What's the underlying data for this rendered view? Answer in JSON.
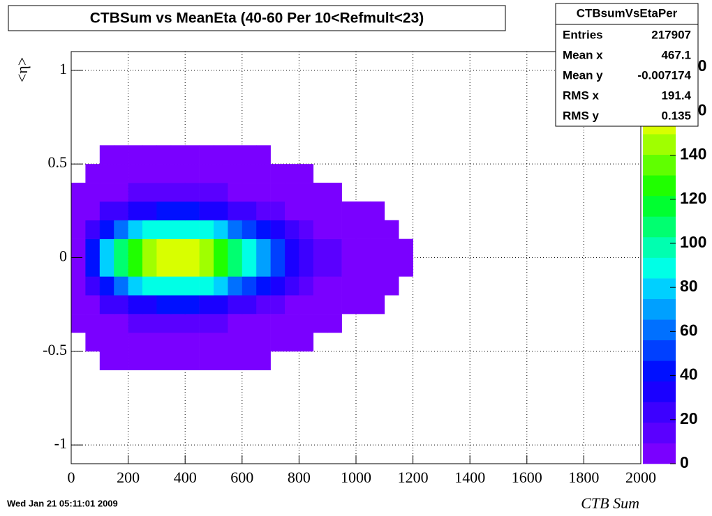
{
  "chart_data": {
    "type": "heatmap",
    "title": "CTBSum vs MeanEta (40-60 Per 10<Refmult<23)",
    "x_label": "CTB Sum",
    "y_label": "<η>",
    "timestamp": "Wed Jan 21 05:11:01 2009",
    "stats": {
      "title": "CTBsumVsEtaPer",
      "rows": [
        [
          "Entries",
          217907
        ],
        [
          "Mean x",
          467.1
        ],
        [
          "Mean y",
          -0.007174
        ],
        [
          "RMS x",
          191.4
        ],
        [
          "RMS y",
          0.135
        ]
      ]
    },
    "xlim": [
      0,
      2000
    ],
    "xticks": [
      0,
      200,
      400,
      600,
      800,
      1000,
      1200,
      1400,
      1600,
      1800,
      2000
    ],
    "ylim": [
      -1.1,
      1.1
    ],
    "yticks": [
      -1,
      -0.5,
      0,
      0.5,
      1
    ],
    "zlim": [
      0,
      187
    ],
    "zticks": [
      0,
      20,
      40,
      60,
      80,
      100,
      120,
      140,
      160,
      180
    ],
    "grid": true,
    "palette": [
      "#7a00ff",
      "#5a00ff",
      "#3c00ff",
      "#1a00ff",
      "#0010ff",
      "#0040ff",
      "#0070ff",
      "#00a0ff",
      "#00d0ff",
      "#00ffe6",
      "#00ffb0",
      "#00ff70",
      "#00ff30",
      "#20ff00",
      "#60ff00",
      "#a0ff00",
      "#d8ff00",
      "#ffe000",
      "#ffa000",
      "#ff3000"
    ],
    "x_bins": [
      0,
      50,
      100,
      150,
      200,
      250,
      300,
      350,
      400,
      450,
      500,
      550,
      600,
      650,
      700,
      750,
      800,
      850,
      900,
      950,
      1000,
      1050,
      1100,
      1150,
      1200
    ],
    "y_bins": [
      -0.6,
      -0.5,
      -0.4,
      -0.3,
      -0.2,
      -0.1,
      0,
      0.1,
      0.2,
      0.3,
      0.4,
      0.5,
      0.6
    ],
    "values": [
      [
        0,
        0,
        1,
        1,
        1,
        1,
        2,
        2,
        2,
        1,
        1,
        1,
        1,
        1,
        0,
        0,
        0,
        0,
        0,
        0,
        0,
        0,
        0,
        0
      ],
      [
        0,
        1,
        2,
        3,
        4,
        4,
        5,
        5,
        5,
        4,
        4,
        3,
        3,
        2,
        1,
        1,
        1,
        0,
        0,
        0,
        0,
        0,
        0,
        0
      ],
      [
        1,
        3,
        6,
        8,
        10,
        11,
        12,
        12,
        12,
        11,
        10,
        9,
        7,
        5,
        4,
        3,
        2,
        1,
        1,
        0,
        0,
        0,
        0,
        0
      ],
      [
        2,
        9,
        19,
        26,
        32,
        36,
        38,
        38,
        38,
        36,
        32,
        27,
        22,
        17,
        12,
        9,
        6,
        4,
        3,
        2,
        1,
        1,
        0,
        0
      ],
      [
        5,
        23,
        45,
        63,
        77,
        86,
        90,
        90,
        90,
        86,
        77,
        65,
        52,
        41,
        30,
        22,
        14,
        9,
        6,
        4,
        2,
        1,
        1,
        0
      ],
      [
        8,
        38,
        75,
        105,
        128,
        143,
        150,
        150,
        150,
        143,
        128,
        108,
        87,
        68,
        50,
        36,
        24,
        15,
        11,
        6,
        4,
        2,
        1,
        1
      ],
      [
        8,
        38,
        75,
        105,
        128,
        143,
        150,
        150,
        150,
        143,
        128,
        108,
        87,
        68,
        50,
        36,
        24,
        15,
        11,
        6,
        4,
        2,
        1,
        1
      ],
      [
        5,
        23,
        45,
        63,
        77,
        86,
        90,
        90,
        90,
        86,
        77,
        65,
        52,
        41,
        30,
        22,
        14,
        9,
        6,
        4,
        2,
        1,
        1,
        0
      ],
      [
        2,
        9,
        19,
        26,
        32,
        36,
        38,
        38,
        38,
        36,
        32,
        27,
        22,
        17,
        12,
        9,
        6,
        4,
        3,
        2,
        1,
        1,
        0,
        0
      ],
      [
        1,
        3,
        6,
        8,
        10,
        11,
        12,
        12,
        12,
        11,
        10,
        9,
        7,
        5,
        4,
        3,
        2,
        1,
        1,
        0,
        0,
        0,
        0,
        0
      ],
      [
        0,
        1,
        2,
        3,
        4,
        4,
        5,
        5,
        5,
        4,
        4,
        3,
        3,
        2,
        1,
        1,
        1,
        0,
        0,
        0,
        0,
        0,
        0,
        0
      ],
      [
        0,
        0,
        1,
        1,
        1,
        1,
        2,
        2,
        2,
        1,
        1,
        1,
        1,
        1,
        0,
        0,
        0,
        0,
        0,
        0,
        0,
        0,
        0,
        0
      ]
    ]
  }
}
